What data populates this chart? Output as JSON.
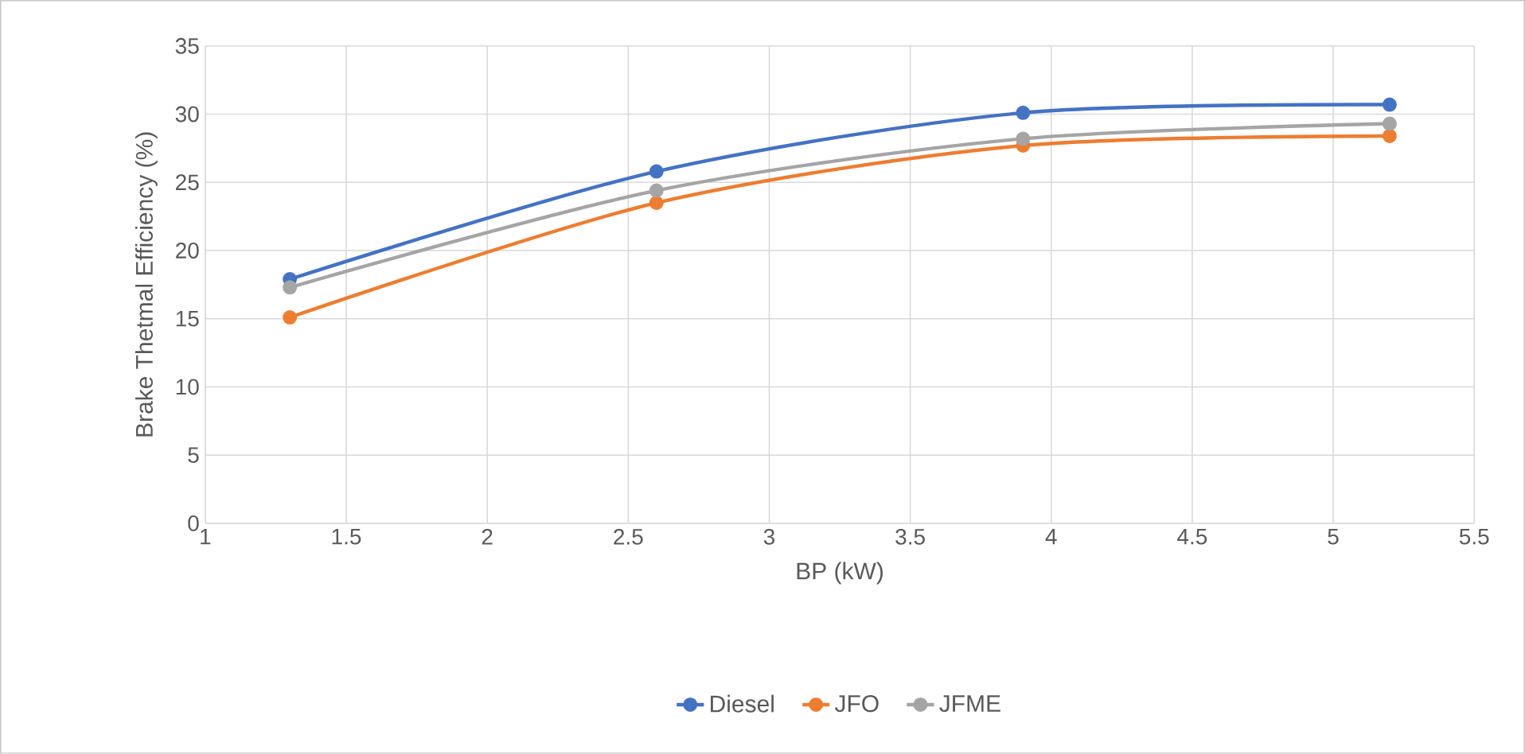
{
  "chart_data": {
    "type": "line",
    "xlabel": "BP (kW)",
    "ylabel": "Brake Thetmal Efficiency (%)",
    "x": [
      1.3,
      2.6,
      3.9,
      5.2
    ],
    "series": [
      {
        "name": "Diesel",
        "color": "#4472c4",
        "values": [
          17.9,
          25.8,
          30.1,
          30.7
        ]
      },
      {
        "name": "JFO",
        "color": "#ed7d31",
        "values": [
          15.1,
          23.5,
          27.7,
          28.4
        ]
      },
      {
        "name": "JFME",
        "color": "#a5a5a5",
        "values": [
          17.3,
          24.4,
          28.2,
          29.3
        ]
      }
    ],
    "xlim": [
      1,
      5.5
    ],
    "xticks": [
      1,
      1.5,
      2,
      2.5,
      3,
      3.5,
      4,
      4.5,
      5,
      5.5
    ],
    "ylim": [
      0,
      35
    ],
    "yticks": [
      0,
      5,
      10,
      15,
      20,
      25,
      30,
      35
    ],
    "grid": true,
    "legend": "bottom",
    "marker": "circle",
    "line_style": "solid"
  }
}
